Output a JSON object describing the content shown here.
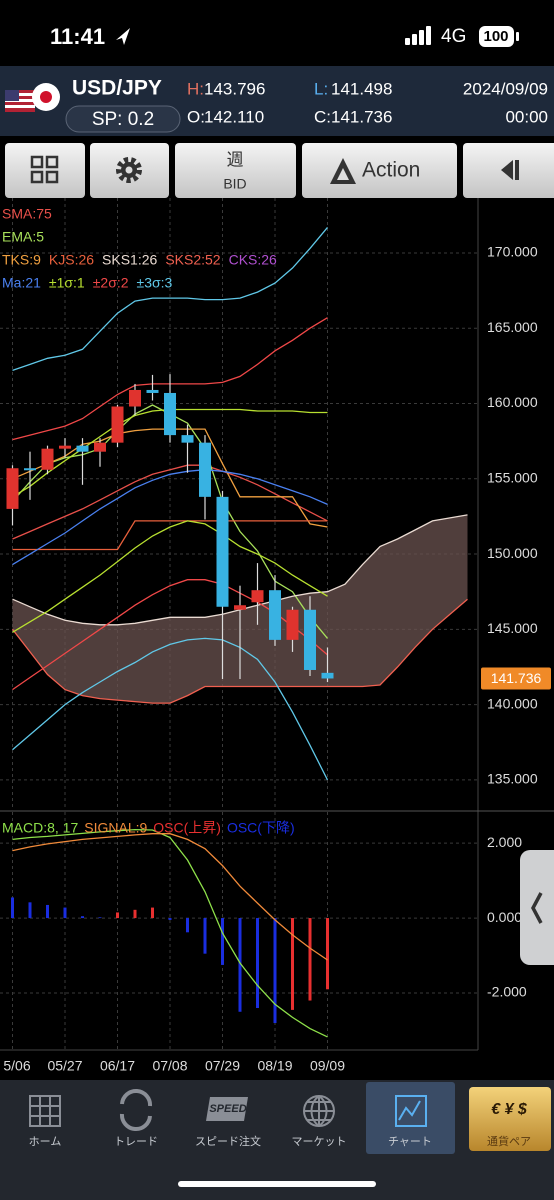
{
  "status_bar": {
    "time": "11:41",
    "network": "4G",
    "battery": "100"
  },
  "header": {
    "pair": "USD/JPY",
    "spread": "SP: 0.2",
    "high_label": "H:",
    "high": "143.796",
    "low_label": "L:",
    "low": "141.498",
    "open_label": "O:",
    "open": "142.110",
    "close_label": "C:",
    "close": "141.736",
    "date": "2024/09/09",
    "time": "00:00"
  },
  "toolbar": {
    "period": "週",
    "price_type": "BID",
    "action": "Action"
  },
  "chart_data": [
    {
      "type": "candlestick",
      "categories": [
        "5/06",
        null,
        null,
        "05/27",
        null,
        null,
        "06/17",
        null,
        null,
        "07/08",
        null,
        null,
        "07/29",
        null,
        null,
        "08/19",
        null,
        null,
        "09/09",
        null,
        null,
        null,
        null,
        null,
        null,
        null,
        null
      ],
      "open": [
        153.0,
        155.7,
        155.6,
        157.0,
        157.2,
        156.8,
        157.4,
        159.8,
        160.9,
        160.7,
        157.9,
        157.4,
        153.8,
        146.3,
        146.8,
        147.6,
        144.3,
        146.3,
        142.11,
        null,
        null,
        null,
        null,
        null,
        null,
        null,
        null
      ],
      "high": [
        155.9,
        156.8,
        157.2,
        157.7,
        157.7,
        157.7,
        159.9,
        161.3,
        161.9,
        161.95,
        158.6,
        157.9,
        154.2,
        147.9,
        149.4,
        148.6,
        146.5,
        147.2,
        143.796,
        null,
        null,
        null,
        null,
        null,
        null,
        null,
        null
      ],
      "low": [
        151.9,
        153.6,
        155.3,
        156.4,
        154.6,
        155.8,
        157.1,
        159.2,
        160.2,
        157.4,
        155.4,
        152.3,
        141.7,
        141.7,
        145.3,
        143.9,
        143.5,
        141.9,
        141.498,
        null,
        null,
        null,
        null,
        null,
        null,
        null,
        null
      ],
      "close": [
        155.7,
        155.6,
        157.0,
        157.2,
        156.8,
        157.4,
        159.8,
        160.9,
        160.7,
        157.9,
        157.4,
        153.8,
        146.5,
        146.6,
        147.6,
        144.3,
        146.3,
        142.3,
        141.736,
        null,
        null,
        null,
        null,
        null,
        null,
        null,
        null
      ],
      "up_color": "#e0332e",
      "down_color": "#38b2e2",
      "series": [
        {
          "name": "SMA:75",
          "color": "#e8504a",
          "values": [
            151.0,
            151.5,
            152.0,
            152.5,
            153.0,
            153.6,
            154.2,
            154.8,
            155.3,
            155.6,
            155.9,
            155.9,
            155.5,
            155.1,
            154.6,
            154.0,
            153.4,
            152.8,
            152.2,
            null,
            null,
            null,
            null,
            null,
            null,
            null,
            null
          ]
        },
        {
          "name": "EMA:5",
          "color": "#a8e05a",
          "values": [
            153.5,
            154.8,
            156.0,
            156.4,
            156.6,
            157.0,
            158.2,
            159.3,
            159.9,
            159.3,
            158.7,
            157.0,
            153.5,
            151.5,
            150.2,
            148.2,
            147.5,
            145.8,
            144.4,
            null,
            null,
            null,
            null,
            null,
            null,
            null,
            null
          ]
        },
        {
          "name": "TKS:9",
          "color": "#f0a040",
          "values": [
            155.0,
            155.5,
            156.0,
            156.5,
            157.3,
            157.5,
            158.0,
            158.2,
            158.3,
            158.3,
            158.3,
            158.3,
            156.0,
            153.8,
            153.8,
            153.8,
            153.8,
            152.0,
            151.8,
            null,
            null,
            null,
            null,
            null,
            null,
            null,
            null
          ]
        },
        {
          "name": "KJS:26",
          "color": "#e8603c",
          "values": [
            150.3,
            150.3,
            150.3,
            150.3,
            150.3,
            150.3,
            150.3,
            152.2,
            152.2,
            152.2,
            152.2,
            152.2,
            152.2,
            152.2,
            152.2,
            152.2,
            152.2,
            152.2,
            152.2,
            null,
            null,
            null,
            null,
            null,
            null,
            null,
            null
          ]
        },
        {
          "name": "SKS1:26",
          "color": "#eadbd2",
          "values": [
            147.0,
            146.5,
            146.0,
            145.6,
            145.4,
            145.3,
            145.3,
            145.4,
            145.6,
            145.8,
            145.8,
            145.8,
            146.0,
            146.3,
            146.6,
            146.9,
            147.2,
            147.4,
            147.5,
            148.0,
            149.3,
            150.5,
            151.0,
            151.6,
            152.2,
            152.4,
            152.6
          ]
        },
        {
          "name": "SKS2:52",
          "color": "#f06050",
          "values": [
            145.0,
            143.5,
            142.0,
            141.0,
            140.6,
            140.4,
            140.3,
            140.2,
            140.1,
            140.1,
            140.6,
            141.2,
            141.2,
            141.2,
            141.2,
            141.2,
            141.2,
            141.2,
            141.2,
            141.2,
            141.2,
            141.3,
            142.5,
            143.8,
            145.0,
            146.0,
            147.0
          ]
        },
        {
          "name": "CKS:26",
          "color": "#b050d0"
        },
        {
          "name": "Ma:21",
          "color": "#4a80f0",
          "values": [
            149.3,
            150.0,
            150.7,
            151.4,
            152.2,
            153.0,
            153.7,
            154.4,
            154.9,
            155.3,
            155.5,
            155.6,
            155.5,
            155.3,
            155.0,
            154.6,
            154.2,
            153.8,
            153.3,
            null,
            null,
            null,
            null,
            null,
            null,
            null,
            null
          ]
        },
        {
          "name": "±1σ:1",
          "color": "#b8e030",
          "upper": [
            153.8,
            154.5,
            155.4,
            156.2,
            157.0,
            157.8,
            158.6,
            159.2,
            159.5,
            159.6,
            159.6,
            159.6,
            159.6,
            159.6,
            159.5,
            159.5,
            159.5,
            159.4,
            159.4,
            null,
            null,
            null,
            null,
            null,
            null,
            null,
            null
          ],
          "lower": [
            144.8,
            145.5,
            146.2,
            147.0,
            147.8,
            148.6,
            149.5,
            150.4,
            151.2,
            151.8,
            152.2,
            152.0,
            151.3,
            150.5,
            150.0,
            149.4,
            148.6,
            147.9,
            147.2,
            null,
            null,
            null,
            null,
            null,
            null,
            null,
            null
          ]
        },
        {
          "name": "±2σ:2",
          "color": "#f04848",
          "upper": [
            157.6,
            157.9,
            158.2,
            158.5,
            159.0,
            159.8,
            160.6,
            161.2,
            161.3,
            161.3,
            161.3,
            161.3,
            161.4,
            161.8,
            162.6,
            163.5,
            164.2,
            165.0,
            165.7,
            null,
            null,
            null,
            null,
            null,
            null,
            null,
            null
          ],
          "lower": [
            141.0,
            141.8,
            142.6,
            143.4,
            144.2,
            145.0,
            145.8,
            146.6,
            147.3,
            147.9,
            148.3,
            148.3,
            148.0,
            147.4,
            146.8,
            146.1,
            145.2,
            144.3,
            143.3,
            null,
            null,
            null,
            null,
            null,
            null,
            null,
            null
          ]
        },
        {
          "name": "±3σ:3",
          "color": "#60c8e8",
          "upper": [
            162.2,
            162.6,
            163.0,
            163.2,
            163.6,
            164.8,
            166.0,
            166.8,
            167.0,
            167.0,
            167.0,
            166.9,
            166.9,
            167.0,
            167.4,
            168.0,
            169.0,
            170.3,
            171.7,
            null,
            null,
            null,
            null,
            null,
            null,
            null,
            null
          ],
          "lower": [
            137.0,
            138.0,
            139.0,
            140.0,
            140.8,
            141.5,
            142.2,
            142.8,
            143.5,
            144.0,
            144.3,
            144.4,
            144.3,
            143.8,
            143.0,
            141.5,
            139.5,
            137.3,
            135.0,
            null,
            null,
            null,
            null,
            null,
            null,
            null,
            null
          ]
        }
      ],
      "cloud_color": "#6b5350",
      "last_price": 141.736,
      "last_price_color": "#f08a28",
      "ylim": [
        133.0,
        173.65
      ],
      "yticks": [
        {
          "value": 135,
          "label": "135.000"
        },
        {
          "value": 140,
          "label": "140.000"
        },
        {
          "value": 145,
          "label": "145.000"
        },
        {
          "value": 150,
          "label": "150.000"
        },
        {
          "value": 155,
          "label": "155.000"
        },
        {
          "value": 160,
          "label": "160.000"
        },
        {
          "value": 165,
          "label": "165.000"
        },
        {
          "value": 170,
          "label": "170.000"
        }
      ],
      "grid": true
    },
    {
      "type": "macd",
      "series": [
        {
          "name": "MACD:8, 17",
          "color": "#8ee04a",
          "kind": "line",
          "values": [
            2.1,
            2.15,
            2.18,
            2.22,
            2.26,
            2.3,
            2.33,
            2.36,
            2.35,
            2.15,
            1.55,
            0.7,
            -0.4,
            -1.2,
            -1.8,
            -2.3,
            -2.65,
            -2.95,
            -3.17
          ]
        },
        {
          "name": "SIGNAL:9",
          "color": "#f08a3a",
          "kind": "line",
          "values": [
            1.8,
            1.9,
            1.98,
            2.04,
            2.1,
            2.14,
            2.18,
            2.22,
            2.25,
            2.25,
            2.1,
            1.85,
            1.4,
            0.85,
            0.4,
            -0.05,
            -0.45,
            -0.8,
            -1.12
          ]
        },
        {
          "name": "OSC(上昇)",
          "color": "#e83030",
          "kind": "bar",
          "values": [
            null,
            null,
            null,
            null,
            null,
            null,
            0.15,
            0.22,
            0.28,
            null,
            null,
            null,
            null,
            null,
            null,
            null,
            -2.45,
            -2.2,
            -1.9
          ]
        },
        {
          "name": "OSC(下降)",
          "color": "#1a2ee0",
          "kind": "bar",
          "values": [
            0.55,
            0.42,
            0.35,
            0.28,
            0.05,
            0.02,
            null,
            null,
            null,
            -0.05,
            -0.38,
            -0.95,
            -1.25,
            -2.5,
            -2.4,
            -2.8,
            null,
            null,
            null
          ]
        }
      ],
      "ylim": [
        -3.52,
        2.83
      ],
      "yticks": [
        {
          "value": -2,
          "label": "-2.000"
        },
        {
          "value": 0,
          "label": "0.000"
        },
        {
          "value": 2,
          "label": "2.000"
        }
      ],
      "grid": true
    }
  ],
  "nav": [
    {
      "label": "ホーム"
    },
    {
      "label": "トレード"
    },
    {
      "label": "スピード注文",
      "icon_text": "SPEED"
    },
    {
      "label": "マーケット"
    },
    {
      "label": "チャート"
    },
    {
      "label": "通貨ペア",
      "icon_text": "€ ¥ $"
    }
  ]
}
